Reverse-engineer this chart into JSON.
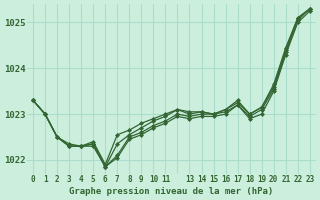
{
  "bg_color": "#cceedd",
  "grid_color": "#aaddcc",
  "line_color": "#336633",
  "marker_color": "#336633",
  "text_color": "#336633",
  "title": "Graphe pression niveau de la mer (hPa)",
  "ylim": [
    1021.7,
    1025.4
  ],
  "yticks": [
    1022,
    1023,
    1024,
    1025
  ],
  "xlim": [
    -0.5,
    23.5
  ],
  "xticks": [
    0,
    1,
    2,
    3,
    4,
    5,
    6,
    7,
    8,
    9,
    10,
    11,
    12,
    13,
    14,
    15,
    16,
    17,
    18,
    19,
    20,
    21,
    22,
    23
  ],
  "xtick_labels": [
    "0",
    "1",
    "2",
    "3",
    "4",
    "5",
    "6",
    "7",
    "8",
    "9",
    "10",
    "11",
    "",
    "13",
    "14",
    "15",
    "16",
    "17",
    "18",
    "19",
    "20",
    "21",
    "22",
    "23"
  ],
  "series": [
    [
      1023.3,
      1023.0,
      1022.5,
      1022.3,
      1022.3,
      1022.3,
      1021.85,
      1022.1,
      1022.5,
      1022.6,
      1022.75,
      1022.85,
      1023.0,
      1022.95,
      1023.0,
      1023.0,
      1023.05,
      1023.2,
      1022.95,
      1023.1,
      1023.55,
      1024.35,
      1025.05,
      1025.3
    ],
    [
      1023.3,
      1023.0,
      1022.5,
      1022.3,
      1022.3,
      1022.35,
      1021.85,
      1022.35,
      1022.55,
      1022.7,
      1022.85,
      1022.95,
      1023.1,
      1023.0,
      1023.05,
      1023.0,
      1023.1,
      1023.25,
      1023.0,
      1023.15,
      1023.6,
      1024.4,
      1025.1,
      1025.3
    ],
    [
      1023.3,
      1023.0,
      1022.5,
      1022.3,
      1022.3,
      1022.4,
      1021.9,
      1022.55,
      1022.65,
      1022.8,
      1022.9,
      1023.0,
      1023.1,
      1023.05,
      1023.05,
      1023.0,
      1023.1,
      1023.3,
      1023.0,
      1023.15,
      1023.65,
      1024.45,
      1025.1,
      1025.3
    ],
    [
      1023.3,
      1023.0,
      1022.5,
      1022.35,
      1022.3,
      1022.35,
      1021.85,
      1022.05,
      1022.45,
      1022.55,
      1022.7,
      1022.8,
      1022.95,
      1022.9,
      1022.95,
      1022.95,
      1023.0,
      1023.2,
      1022.9,
      1023.0,
      1023.5,
      1024.3,
      1025.0,
      1025.25
    ]
  ]
}
